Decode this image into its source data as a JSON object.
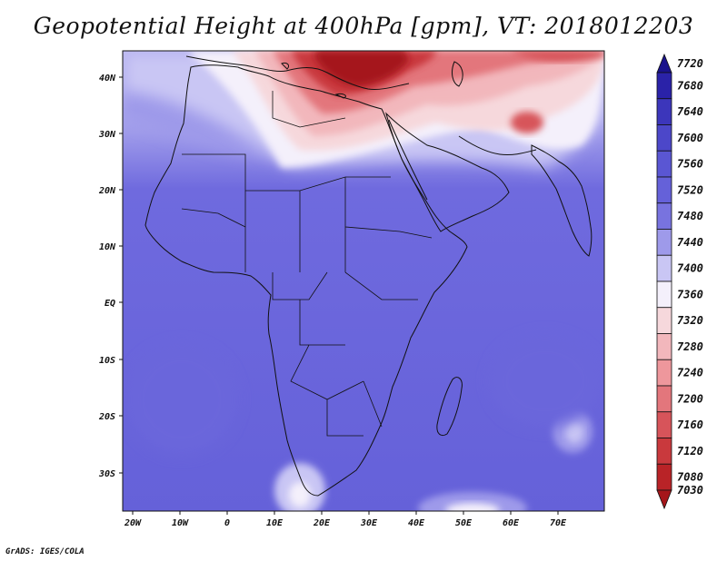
{
  "title": "Geopotential Height at 400hPa [gpm], VT: 2018012203",
  "credit": "GrADS: IGES/COLA",
  "lat_labels": [
    "40N",
    "30N",
    "20N",
    "10N",
    "EQ",
    "10S",
    "20S",
    "30S"
  ],
  "lon_labels": [
    "20W",
    "10W",
    "0",
    "10E",
    "20E",
    "30E",
    "40E",
    "50E",
    "60E",
    "70E"
  ],
  "colorbar": {
    "levels": [
      "7720",
      "7680",
      "7640",
      "7600",
      "7560",
      "7520",
      "7480",
      "7440",
      "7400",
      "7360",
      "7320",
      "7280",
      "7240",
      "7200",
      "7160",
      "7120",
      "7080",
      "7030"
    ],
    "colors": [
      "#1a128c",
      "#2a22a8",
      "#3c36bb",
      "#4c47c9",
      "#5a56d3",
      "#6561d9",
      "#7873df",
      "#9e9aea",
      "#c9c6f4",
      "#f4f0fb",
      "#f6d8dc",
      "#f2b7bc",
      "#ee979c",
      "#e3767c",
      "#d7545a",
      "#c9393d",
      "#b92327",
      "#a5161a"
    ]
  }
}
